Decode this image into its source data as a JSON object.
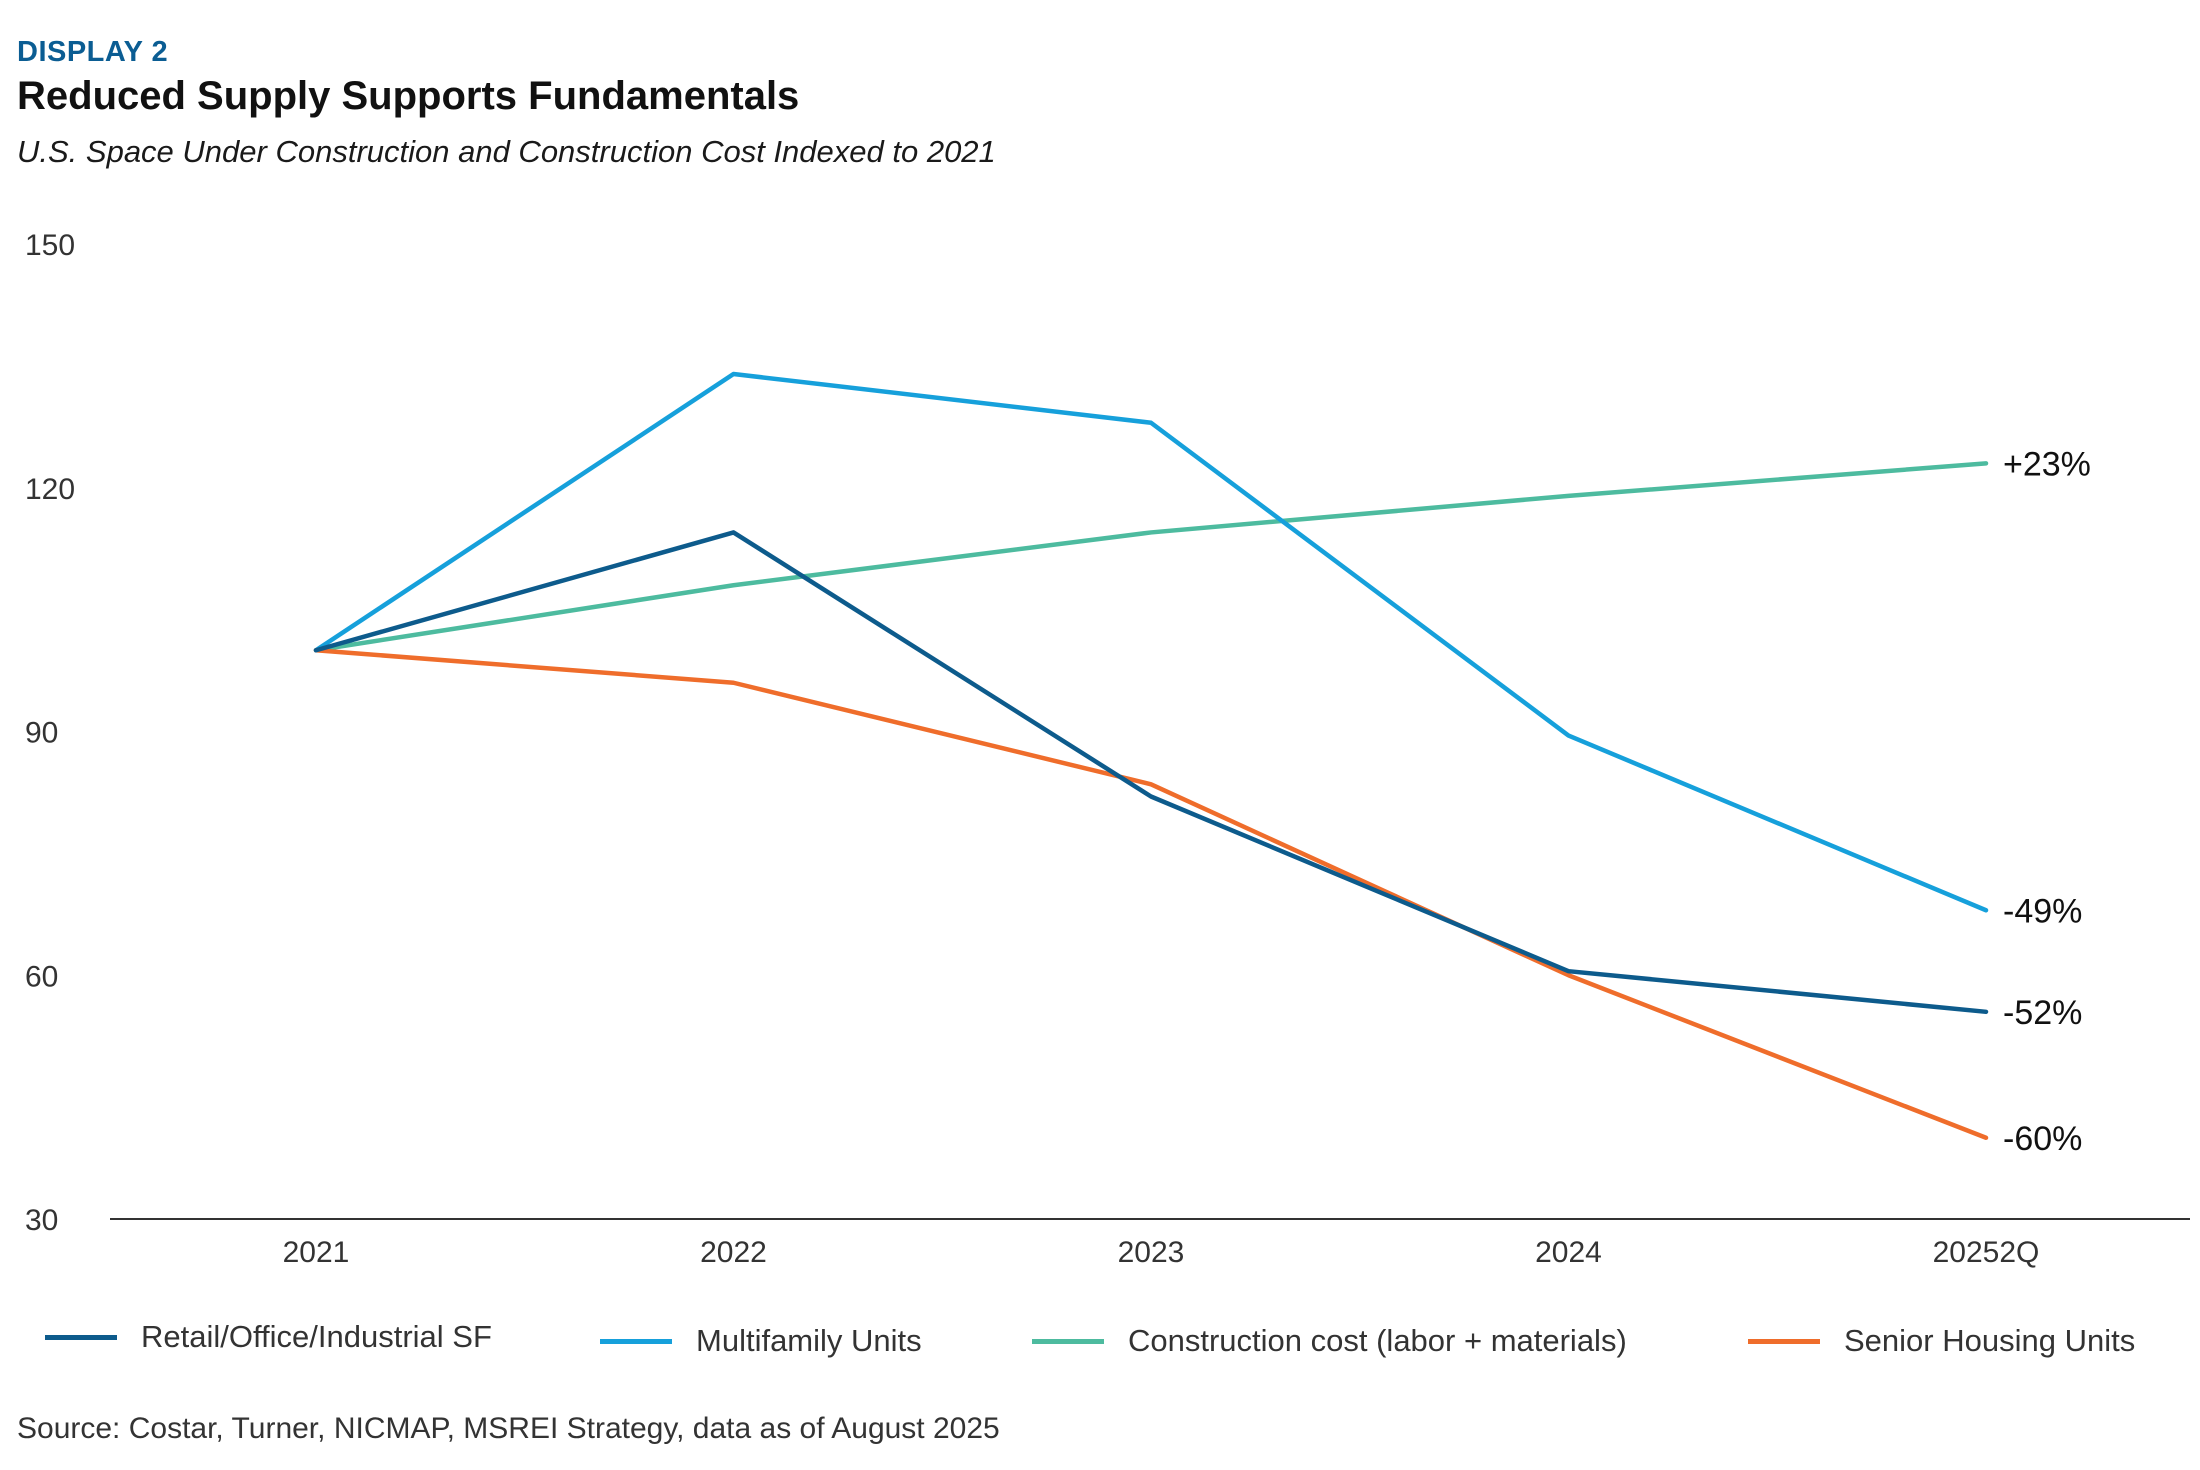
{
  "header": {
    "eyebrow": "DISPLAY 2",
    "title": "Reduced Supply Supports Fundamentals",
    "subtitle": "U.S. Space Under Construction and Construction Cost Indexed to 2021"
  },
  "chart_data": {
    "type": "line",
    "title": "Reduced Supply Supports Fundamentals",
    "subtitle": "U.S. Space Under Construction and Construction Cost Indexed to 2021",
    "xlabel": "",
    "ylabel": "",
    "categories": [
      "2021",
      "2022",
      "2023",
      "2024",
      "20252Q"
    ],
    "ylim": [
      30,
      150
    ],
    "yticks": [
      150,
      120,
      90,
      60,
      30
    ],
    "grid": false,
    "legend_position": "bottom",
    "series": [
      {
        "name": "Retail/Office/Industrial SF",
        "color": "#0d5b8c",
        "values": [
          100,
          114.5,
          82,
          60.5,
          55.5
        ],
        "end_label": "-52%"
      },
      {
        "name": "Multifamily Units",
        "color": "#16a0db",
        "values": [
          100,
          134,
          128,
          89.5,
          68
        ],
        "end_label": "-49%"
      },
      {
        "name": "Construction cost (labor + materials)",
        "color": "#4dbb9f",
        "values": [
          100,
          108,
          114.5,
          119,
          123
        ],
        "end_label": "+23%"
      },
      {
        "name": "Senior Housing Units",
        "color": "#ef6d2b",
        "values": [
          100,
          96,
          83.5,
          60,
          40
        ],
        "end_label": "-60%"
      }
    ]
  },
  "legend": {
    "items": [
      {
        "label": "Retail/Office/Industrial SF",
        "color": "#0d5b8c"
      },
      {
        "label": "Multifamily Units",
        "color": "#16a0db"
      },
      {
        "label": "Construction cost (labor + materials)",
        "color": "#4dbb9f"
      },
      {
        "label": "Senior Housing Units",
        "color": "#ef6d2b"
      }
    ]
  },
  "footer": {
    "source": "Source: Costar, Turner, NICMAP, MSREI Strategy, data as of August 2025"
  }
}
